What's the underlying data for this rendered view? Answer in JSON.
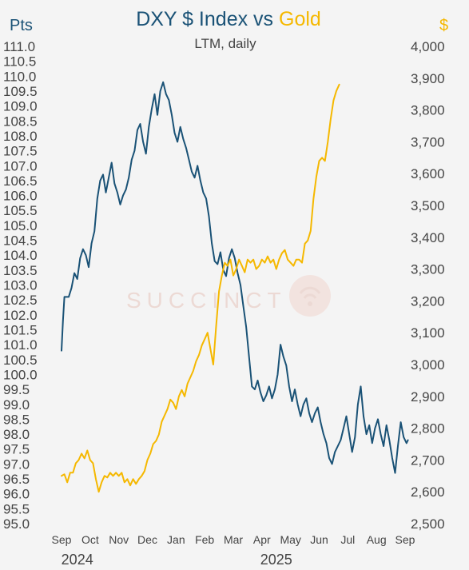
{
  "chart_data": {
    "type": "line",
    "title": {
      "part1": "DXY $ Index",
      "part2": " vs ",
      "part3": "Gold"
    },
    "subtitle": "LTM, daily",
    "left_axis": {
      "unit": "Pts",
      "ylim": [
        95.0,
        111.0
      ],
      "ticks": [
        "95.0",
        "95.5",
        "96.0",
        "96.5",
        "97.0",
        "97.5",
        "98.0",
        "98.5",
        "99.0",
        "99.5",
        "100.0",
        "100.5",
        "101.0",
        "101.5",
        "102.0",
        "102.5",
        "103.0",
        "103.5",
        "104.0",
        "104.5",
        "105.0",
        "105.5",
        "106.0",
        "106.5",
        "107.0",
        "107.5",
        "108.0",
        "108.5",
        "109.0",
        "109.5",
        "110.0",
        "110.5",
        "111.0"
      ]
    },
    "right_axis": {
      "unit": "$",
      "ylim": [
        2500,
        4000
      ],
      "ticks": [
        "2,500",
        "2,600",
        "2,700",
        "2,800",
        "2,900",
        "3,000",
        "3,100",
        "3,200",
        "3,300",
        "3,400",
        "3,500",
        "3,600",
        "3,700",
        "3,800",
        "3,900",
        "4,000"
      ]
    },
    "x_axis": {
      "months": [
        "Sep",
        "Oct",
        "Nov",
        "Dec",
        "Jan",
        "Feb",
        "Mar",
        "Apr",
        "May",
        "Jun",
        "Jul",
        "Aug",
        "Sep"
      ],
      "years": [
        "2024",
        "2025"
      ]
    },
    "colors": {
      "dxy": "#1a5276",
      "gold": "#f5b800",
      "axis_text": "#444444",
      "watermark": "#e8c8bf"
    },
    "watermark": "SUCCINCT",
    "series": [
      {
        "name": "DXY $ Index",
        "axis": "left",
        "points": [
          [
            0.0,
            100.8
          ],
          [
            0.05,
            101.8
          ],
          [
            0.1,
            102.6
          ],
          [
            0.25,
            102.6
          ],
          [
            0.35,
            102.9
          ],
          [
            0.45,
            103.4
          ],
          [
            0.55,
            103.2
          ],
          [
            0.65,
            103.9
          ],
          [
            0.75,
            104.2
          ],
          [
            0.85,
            104.0
          ],
          [
            0.95,
            103.6
          ],
          [
            1.05,
            104.4
          ],
          [
            1.15,
            104.8
          ],
          [
            1.25,
            105.9
          ],
          [
            1.35,
            106.5
          ],
          [
            1.45,
            106.7
          ],
          [
            1.55,
            106.1
          ],
          [
            1.65,
            106.6
          ],
          [
            1.75,
            107.1
          ],
          [
            1.85,
            106.4
          ],
          [
            1.95,
            106.1
          ],
          [
            2.05,
            105.7
          ],
          [
            2.15,
            106.0
          ],
          [
            2.25,
            106.2
          ],
          [
            2.35,
            106.6
          ],
          [
            2.45,
            107.2
          ],
          [
            2.55,
            107.5
          ],
          [
            2.65,
            108.2
          ],
          [
            2.75,
            108.4
          ],
          [
            2.85,
            107.8
          ],
          [
            2.95,
            107.4
          ],
          [
            3.05,
            108.3
          ],
          [
            3.15,
            108.9
          ],
          [
            3.25,
            109.4
          ],
          [
            3.35,
            108.7
          ],
          [
            3.45,
            109.5
          ],
          [
            3.55,
            109.8
          ],
          [
            3.65,
            109.4
          ],
          [
            3.75,
            109.2
          ],
          [
            3.85,
            108.7
          ],
          [
            3.95,
            108.1
          ],
          [
            4.05,
            107.8
          ],
          [
            4.15,
            108.3
          ],
          [
            4.25,
            107.9
          ],
          [
            4.35,
            107.6
          ],
          [
            4.45,
            107.2
          ],
          [
            4.55,
            106.8
          ],
          [
            4.65,
            106.6
          ],
          [
            4.75,
            107.0
          ],
          [
            4.85,
            106.5
          ],
          [
            4.95,
            106.1
          ],
          [
            5.05,
            105.9
          ],
          [
            5.15,
            105.3
          ],
          [
            5.25,
            104.4
          ],
          [
            5.35,
            103.8
          ],
          [
            5.45,
            103.7
          ],
          [
            5.55,
            104.1
          ],
          [
            5.65,
            103.5
          ],
          [
            5.75,
            103.3
          ],
          [
            5.85,
            103.9
          ],
          [
            5.95,
            104.2
          ],
          [
            6.05,
            103.9
          ],
          [
            6.15,
            103.4
          ],
          [
            6.25,
            103.0
          ],
          [
            6.35,
            102.3
          ],
          [
            6.45,
            101.6
          ],
          [
            6.55,
            100.6
          ],
          [
            6.65,
            99.6
          ],
          [
            6.75,
            99.5
          ],
          [
            6.85,
            99.8
          ],
          [
            6.95,
            99.4
          ],
          [
            7.05,
            99.1
          ],
          [
            7.15,
            99.3
          ],
          [
            7.25,
            99.6
          ],
          [
            7.35,
            99.2
          ],
          [
            7.45,
            99.5
          ],
          [
            7.55,
            100.0
          ],
          [
            7.65,
            101.0
          ],
          [
            7.75,
            100.6
          ],
          [
            7.85,
            100.3
          ],
          [
            7.95,
            99.6
          ],
          [
            8.05,
            99.1
          ],
          [
            8.15,
            99.5
          ],
          [
            8.25,
            99.0
          ],
          [
            8.35,
            98.6
          ],
          [
            8.45,
            99.0
          ],
          [
            8.55,
            99.2
          ],
          [
            8.65,
            98.7
          ],
          [
            8.75,
            98.4
          ],
          [
            8.85,
            98.7
          ],
          [
            8.95,
            98.9
          ],
          [
            9.05,
            98.4
          ],
          [
            9.15,
            98.0
          ],
          [
            9.25,
            97.7
          ],
          [
            9.35,
            97.2
          ],
          [
            9.45,
            97.0
          ],
          [
            9.55,
            97.4
          ],
          [
            9.65,
            97.6
          ],
          [
            9.75,
            97.8
          ],
          [
            9.85,
            98.2
          ],
          [
            9.95,
            98.6
          ],
          [
            10.05,
            98.0
          ],
          [
            10.15,
            97.4
          ],
          [
            10.25,
            97.9
          ],
          [
            10.35,
            99.0
          ],
          [
            10.45,
            99.6
          ],
          [
            10.55,
            98.6
          ],
          [
            10.65,
            98.0
          ],
          [
            10.75,
            98.3
          ],
          [
            10.85,
            97.7
          ],
          [
            10.95,
            98.2
          ],
          [
            11.05,
            98.5
          ],
          [
            11.15,
            98.0
          ],
          [
            11.25,
            97.6
          ],
          [
            11.35,
            98.3
          ],
          [
            11.45,
            97.8
          ],
          [
            11.55,
            97.2
          ],
          [
            11.65,
            96.7
          ],
          [
            11.75,
            97.6
          ],
          [
            11.85,
            98.4
          ],
          [
            11.95,
            97.9
          ],
          [
            12.05,
            97.7
          ],
          [
            12.1,
            97.8
          ]
        ]
      },
      {
        "name": "Gold",
        "axis": "right",
        "points": [
          [
            0.0,
            2650
          ],
          [
            0.1,
            2655
          ],
          [
            0.2,
            2630
          ],
          [
            0.3,
            2660
          ],
          [
            0.4,
            2660
          ],
          [
            0.5,
            2690
          ],
          [
            0.6,
            2700
          ],
          [
            0.7,
            2720
          ],
          [
            0.8,
            2705
          ],
          [
            0.9,
            2730
          ],
          [
            1.0,
            2700
          ],
          [
            1.1,
            2690
          ],
          [
            1.2,
            2640
          ],
          [
            1.3,
            2600
          ],
          [
            1.4,
            2630
          ],
          [
            1.5,
            2650
          ],
          [
            1.6,
            2645
          ],
          [
            1.7,
            2660
          ],
          [
            1.8,
            2650
          ],
          [
            1.9,
            2660
          ],
          [
            2.0,
            2650
          ],
          [
            2.1,
            2660
          ],
          [
            2.2,
            2630
          ],
          [
            2.3,
            2640
          ],
          [
            2.4,
            2620
          ],
          [
            2.5,
            2640
          ],
          [
            2.6,
            2625
          ],
          [
            2.7,
            2640
          ],
          [
            2.8,
            2650
          ],
          [
            2.9,
            2665
          ],
          [
            3.0,
            2700
          ],
          [
            3.1,
            2720
          ],
          [
            3.2,
            2750
          ],
          [
            3.3,
            2760
          ],
          [
            3.4,
            2780
          ],
          [
            3.5,
            2820
          ],
          [
            3.6,
            2840
          ],
          [
            3.7,
            2860
          ],
          [
            3.8,
            2890
          ],
          [
            3.9,
            2880
          ],
          [
            4.0,
            2860
          ],
          [
            4.1,
            2900
          ],
          [
            4.2,
            2920
          ],
          [
            4.3,
            2900
          ],
          [
            4.4,
            2940
          ],
          [
            4.5,
            2960
          ],
          [
            4.6,
            2980
          ],
          [
            4.7,
            3010
          ],
          [
            4.8,
            3030
          ],
          [
            4.9,
            3060
          ],
          [
            5.0,
            3080
          ],
          [
            5.1,
            3100
          ],
          [
            5.2,
            3050
          ],
          [
            5.3,
            3000
          ],
          [
            5.4,
            3120
          ],
          [
            5.5,
            3230
          ],
          [
            5.6,
            3280
          ],
          [
            5.7,
            3320
          ],
          [
            5.8,
            3310
          ],
          [
            5.9,
            3330
          ],
          [
            6.0,
            3280
          ],
          [
            6.1,
            3300
          ],
          [
            6.2,
            3330
          ],
          [
            6.3,
            3310
          ],
          [
            6.4,
            3290
          ],
          [
            6.5,
            3330
          ],
          [
            6.6,
            3320
          ],
          [
            6.7,
            3330
          ],
          [
            6.8,
            3300
          ],
          [
            6.9,
            3310
          ],
          [
            7.0,
            3330
          ],
          [
            7.1,
            3320
          ],
          [
            7.2,
            3340
          ],
          [
            7.3,
            3320
          ],
          [
            7.4,
            3330
          ],
          [
            7.5,
            3300
          ],
          [
            7.6,
            3330
          ],
          [
            7.7,
            3350
          ],
          [
            7.8,
            3360
          ],
          [
            7.9,
            3330
          ],
          [
            8.0,
            3320
          ],
          [
            8.1,
            3310
          ],
          [
            8.2,
            3330
          ],
          [
            8.3,
            3330
          ],
          [
            8.4,
            3320
          ],
          [
            8.5,
            3380
          ],
          [
            8.6,
            3390
          ],
          [
            8.7,
            3420
          ],
          [
            8.8,
            3520
          ],
          [
            8.9,
            3590
          ],
          [
            9.0,
            3640
          ],
          [
            9.1,
            3650
          ],
          [
            9.2,
            3640
          ],
          [
            9.3,
            3700
          ],
          [
            9.4,
            3770
          ],
          [
            9.5,
            3830
          ],
          [
            9.6,
            3860
          ],
          [
            9.7,
            3880
          ]
        ]
      }
    ]
  }
}
